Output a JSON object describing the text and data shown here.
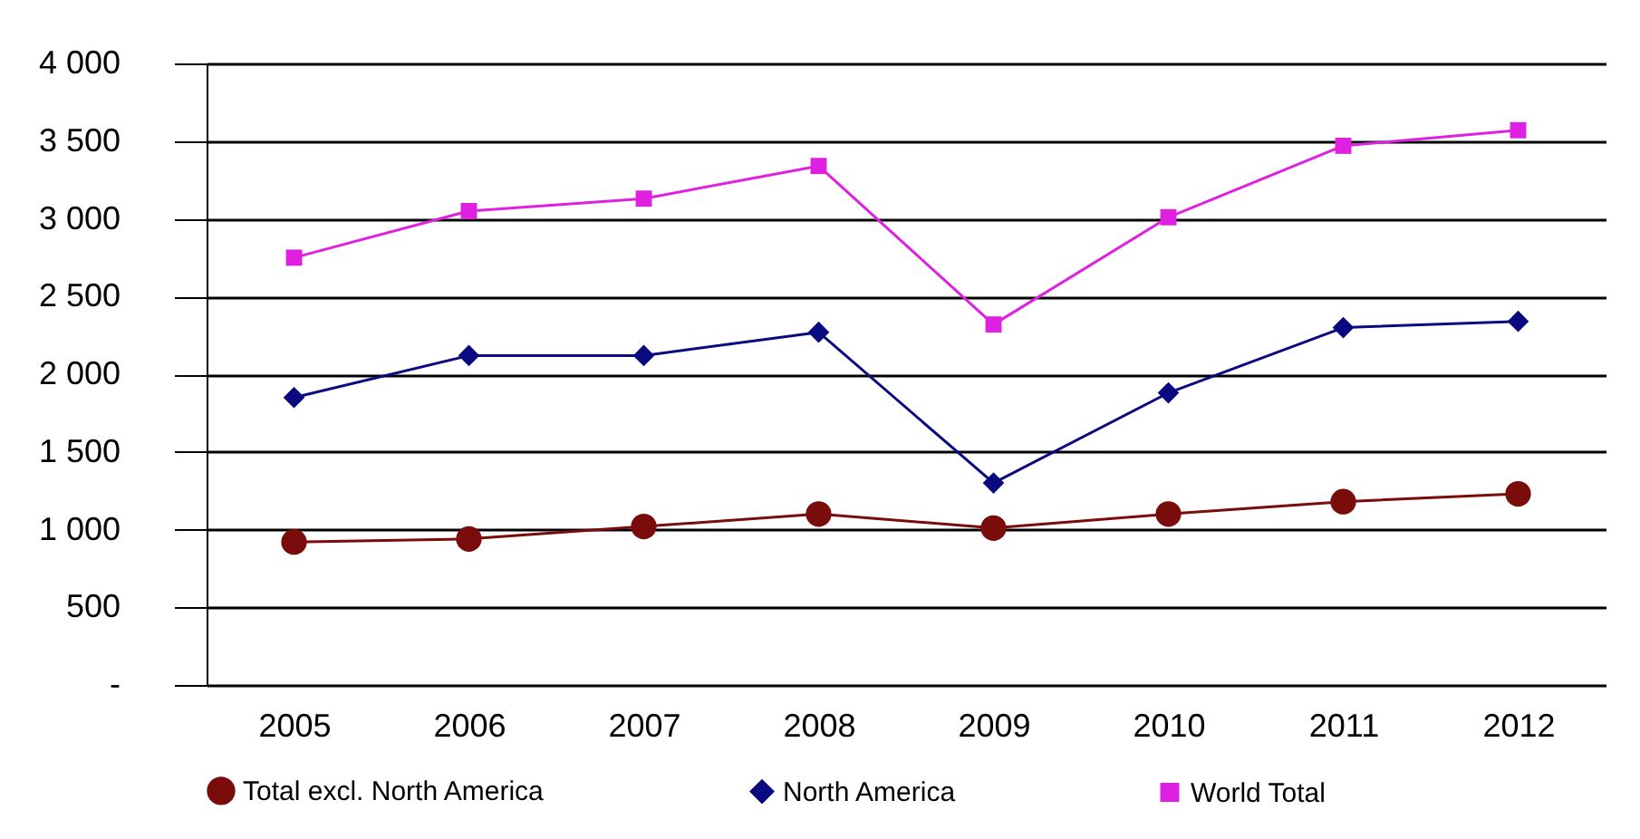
{
  "chart_data": {
    "type": "line",
    "categories": [
      "2005",
      "2006",
      "2007",
      "2008",
      "2009",
      "2010",
      "2011",
      "2012"
    ],
    "series": [
      {
        "name": "Total excl. North America",
        "color": "#7b0c0c",
        "marker": "circle",
        "values": [
          920,
          940,
          1020,
          1100,
          1010,
          1100,
          1180,
          1230
        ]
      },
      {
        "name": "North America",
        "color": "#0a0a80",
        "marker": "diamond",
        "values": [
          1850,
          2120,
          2120,
          2270,
          1300,
          1880,
          2300,
          2340
        ]
      },
      {
        "name": "World Total",
        "color": "#e020e0",
        "marker": "square",
        "values": [
          2750,
          3050,
          3130,
          3340,
          2320,
          3010,
          3470,
          3570
        ]
      }
    ],
    "ylim": [
      0,
      4000
    ],
    "yticks": [
      {
        "value": 0,
        "label": "-"
      },
      {
        "value": 500,
        "label": "500"
      },
      {
        "value": 1000,
        "label": "1 000"
      },
      {
        "value": 1500,
        "label": "1 500"
      },
      {
        "value": 2000,
        "label": "2 000"
      },
      {
        "value": 2500,
        "label": "2 500"
      },
      {
        "value": 3000,
        "label": "3 000"
      },
      {
        "value": 3500,
        "label": "3 500"
      },
      {
        "value": 4000,
        "label": "4 000"
      }
    ],
    "grid": "y",
    "legend": "bottom"
  }
}
